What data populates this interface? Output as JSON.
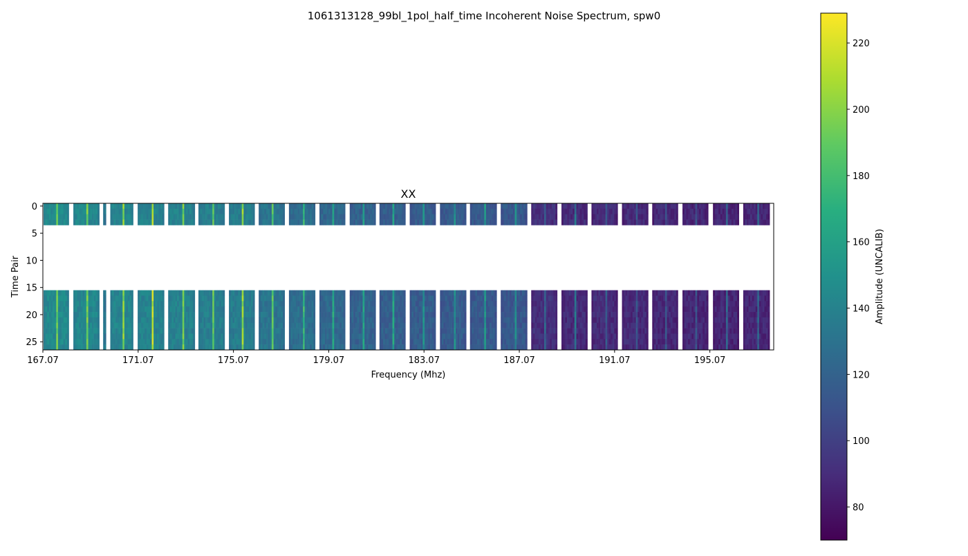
{
  "chart_data": {
    "type": "heatmap",
    "title": "1061313128_99bl_1pol_half_time Incoherent Noise Spectrum, spw0",
    "subplot_title": "XX",
    "xlabel": "Frequency (Mhz)",
    "ylabel": "Time Pair",
    "x_ticks": [
      "167.07",
      "171.07",
      "175.07",
      "179.07",
      "183.07",
      "187.07",
      "191.07",
      "195.07"
    ],
    "x_tick_values": [
      167.07,
      171.07,
      175.07,
      179.07,
      183.07,
      187.07,
      191.07,
      195.07
    ],
    "xlim": [
      167.07,
      197.75
    ],
    "y_ticks": [
      "0",
      "5",
      "10",
      "15",
      "20",
      "25"
    ],
    "y_tick_values": [
      0,
      5,
      10,
      15,
      20,
      25
    ],
    "ylim": [
      26.5,
      -0.5
    ],
    "time_pair_rows": [
      [
        0,
        3
      ],
      [
        16,
        26
      ]
    ],
    "coarse_channels": [
      {
        "start": 167.1,
        "end": 168.16,
        "amplitude": 145,
        "peak": 200
      },
      {
        "start": 168.35,
        "end": 169.44,
        "amplitude": 143,
        "peak": 205
      },
      {
        "start": 169.6,
        "end": 169.72,
        "amplitude": 140,
        "peak": 140
      },
      {
        "start": 169.9,
        "end": 170.86,
        "amplitude": 142,
        "peak": 210
      },
      {
        "start": 171.05,
        "end": 172.16,
        "amplitude": 141,
        "peak": 222
      },
      {
        "start": 172.33,
        "end": 173.45,
        "amplitude": 140,
        "peak": 205
      },
      {
        "start": 173.6,
        "end": 174.7,
        "amplitude": 138,
        "peak": 198
      },
      {
        "start": 174.88,
        "end": 175.96,
        "amplitude": 137,
        "peak": 212
      },
      {
        "start": 176.13,
        "end": 177.22,
        "amplitude": 132,
        "peak": 195
      },
      {
        "start": 177.4,
        "end": 178.5,
        "amplitude": 128,
        "peak": 185
      },
      {
        "start": 178.68,
        "end": 179.76,
        "amplitude": 124,
        "peak": 175
      },
      {
        "start": 179.95,
        "end": 181.04,
        "amplitude": 121,
        "peak": 170
      },
      {
        "start": 181.2,
        "end": 182.29,
        "amplitude": 119,
        "peak": 172
      },
      {
        "start": 182.47,
        "end": 183.56,
        "amplitude": 117,
        "peak": 160
      },
      {
        "start": 183.74,
        "end": 184.84,
        "amplitude": 116,
        "peak": 158
      },
      {
        "start": 185.0,
        "end": 186.12,
        "amplitude": 115,
        "peak": 165
      },
      {
        "start": 186.29,
        "end": 187.4,
        "amplitude": 114,
        "peak": 155
      },
      {
        "start": 187.57,
        "end": 188.66,
        "amplitude": 92,
        "peak": 130
      },
      {
        "start": 188.84,
        "end": 189.93,
        "amplitude": 90,
        "peak": 140
      },
      {
        "start": 190.1,
        "end": 191.2,
        "amplitude": 90,
        "peak": 125
      },
      {
        "start": 191.38,
        "end": 192.48,
        "amplitude": 89,
        "peak": 120
      },
      {
        "start": 192.65,
        "end": 193.73,
        "amplitude": 88,
        "peak": 118
      },
      {
        "start": 193.92,
        "end": 195.0,
        "amplitude": 88,
        "peak": 120
      },
      {
        "start": 195.2,
        "end": 196.29,
        "amplitude": 87,
        "peak": 132
      },
      {
        "start": 196.47,
        "end": 197.58,
        "amplitude": 88,
        "peak": 128
      }
    ],
    "colorbar": {
      "label": "Amplitude (UNCALIB)",
      "colormap": "viridis",
      "range": [
        70,
        229
      ],
      "ticks": [
        "80",
        "100",
        "120",
        "140",
        "160",
        "180",
        "200",
        "220"
      ],
      "tick_values": [
        80,
        100,
        120,
        140,
        160,
        180,
        200,
        220
      ]
    },
    "grid": false
  }
}
